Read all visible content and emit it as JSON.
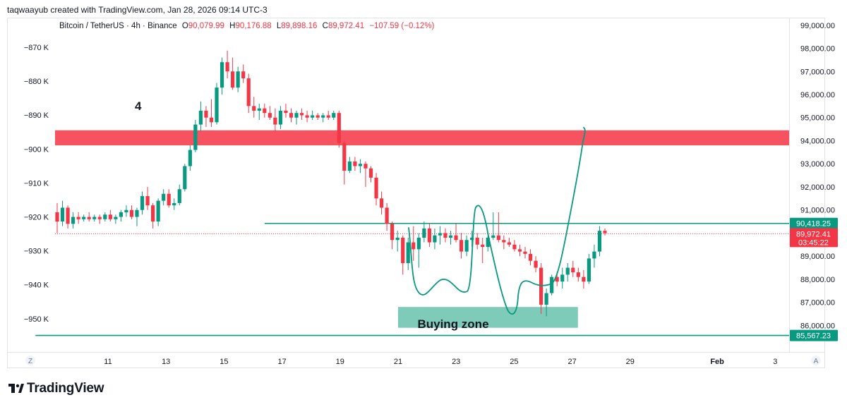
{
  "header": {
    "credit": "taqwaayub created with TradingView.com, Jan 28, 2026 09:14 UTC-3"
  },
  "symbol": {
    "name": "Bitcoin / TetherUS · 4h · Binance",
    "o_label": "O",
    "o_value": "90,079.99",
    "h_label": "H",
    "h_value": "90,176.88",
    "l_label": "L",
    "l_value": "89,898.16",
    "c_label": "C",
    "c_value": "89,972.41",
    "change": "−107.59 (−0.12%)"
  },
  "annotations": {
    "wave_number": "4",
    "buying_zone": "Buying zone"
  },
  "price_badges": {
    "upper_line": "90,418.25",
    "last_price": "89,972.41",
    "countdown": "03:45:22",
    "lower_line": "85,567.23"
  },
  "corner_buttons": {
    "left": "Z",
    "right": "A"
  },
  "footer": {
    "brand": "TradingView"
  },
  "colors": {
    "up": "#089981",
    "down": "#f23645",
    "resistance_zone": "#f7525f",
    "buying_zone": "#7fcbb9",
    "line": "#089981",
    "text": "#131722"
  },
  "chart_data": {
    "type": "candlestick",
    "title": "",
    "y_right": {
      "ticks": [
        "99,000.00",
        "98,000.00",
        "97,000.00",
        "96,000.00",
        "95,000.00",
        "94,000.00",
        "93,000.00",
        "92,000.00",
        "91,000.00",
        "90,000.00",
        "89,000.00",
        "88,000.00",
        "87,000.00",
        "86,000.00"
      ],
      "tick_values": [
        99000,
        98000,
        97000,
        96000,
        95000,
        94000,
        93000,
        92000,
        91000,
        90000,
        89000,
        88000,
        87000,
        86000
      ],
      "range": [
        85000,
        99500
      ]
    },
    "y_left": {
      "ticks": [
        "−870 K",
        "−880 K",
        "−890 K",
        "−900 K",
        "−910 K",
        "−920 K",
        "−930 K",
        "−940 K",
        "−950 K"
      ],
      "tick_values": [
        -870,
        -880,
        -890,
        -900,
        -910,
        -920,
        -930,
        -940,
        -950
      ]
    },
    "x_axis": {
      "labels": [
        "11",
        "13",
        "15",
        "17",
        "19",
        "21",
        "23",
        "25",
        "27",
        "29",
        "Feb",
        "3"
      ],
      "day_positions": [
        11,
        13,
        15,
        17,
        19,
        21,
        23,
        25,
        27,
        29,
        32,
        34
      ]
    },
    "resistance_zone": [
      93800,
      94450
    ],
    "buying_zone": {
      "price": [
        85900,
        86800
      ],
      "days": [
        21,
        27.2
      ]
    },
    "horizontal_lines": [
      {
        "price": 90418.25,
        "from_day": 16.4
      },
      {
        "price": 85567.23,
        "from_day": 8.5
      }
    ],
    "last_price": 89972.41,
    "candles_ohlc": [
      [
        90900,
        91300,
        90000,
        90500
      ],
      [
        90500,
        91400,
        90300,
        91100
      ],
      [
        91100,
        91200,
        90200,
        90400
      ],
      [
        90400,
        90900,
        90200,
        90700
      ],
      [
        90700,
        90900,
        90400,
        90600
      ],
      [
        90600,
        90800,
        90500,
        90700
      ],
      [
        90700,
        90900,
        90500,
        90600
      ],
      [
        90600,
        90800,
        90500,
        90700
      ],
      [
        90700,
        90800,
        90400,
        90600
      ],
      [
        90600,
        90900,
        90500,
        90800
      ],
      [
        90800,
        91000,
        90500,
        90600
      ],
      [
        90600,
        90800,
        90400,
        90700
      ],
      [
        90700,
        91000,
        90500,
        90900
      ],
      [
        90900,
        91200,
        90700,
        91000
      ],
      [
        91000,
        91200,
        90600,
        90700
      ],
      [
        90700,
        91100,
        90300,
        91000
      ],
      [
        91000,
        91800,
        90800,
        91600
      ],
      [
        91600,
        92000,
        91000,
        91200
      ],
      [
        91200,
        91300,
        90200,
        90500
      ],
      [
        90500,
        91500,
        90300,
        91400
      ],
      [
        91400,
        91900,
        91200,
        91700
      ],
      [
        91700,
        91900,
        91100,
        91200
      ],
      [
        91200,
        91500,
        91000,
        91300
      ],
      [
        91300,
        92100,
        91200,
        91900
      ],
      [
        91900,
        93000,
        91800,
        92900
      ],
      [
        92900,
        93800,
        92700,
        93600
      ],
      [
        93600,
        94900,
        93500,
        94700
      ],
      [
        94700,
        95700,
        94400,
        95300
      ],
      [
        95300,
        95500,
        94600,
        95000
      ],
      [
        95000,
        95800,
        94600,
        94800
      ],
      [
        94800,
        96500,
        94700,
        96300
      ],
      [
        96300,
        97600,
        96000,
        97400
      ],
      [
        97400,
        97900,
        96700,
        97000
      ],
      [
        97000,
        97600,
        96200,
        96300
      ],
      [
        96300,
        97200,
        96100,
        97000
      ],
      [
        97000,
        97300,
        96500,
        96700
      ],
      [
        96700,
        96900,
        95200,
        95500
      ],
      [
        95500,
        95900,
        95000,
        95300
      ],
      [
        95300,
        95600,
        94900,
        95400
      ],
      [
        95400,
        95600,
        95000,
        95200
      ],
      [
        95200,
        95500,
        94900,
        95000
      ],
      [
        95000,
        95400,
        94400,
        94700
      ],
      [
        94700,
        95500,
        94500,
        95300
      ],
      [
        95300,
        95600,
        95000,
        95200
      ],
      [
        95200,
        95400,
        94800,
        95000
      ],
      [
        95000,
        95300,
        94700,
        95200
      ],
      [
        95200,
        95400,
        94900,
        95100
      ],
      [
        95100,
        95300,
        94800,
        95000
      ],
      [
        95000,
        95300,
        94900,
        95100
      ],
      [
        95100,
        95200,
        94900,
        95000
      ],
      [
        95000,
        95200,
        94800,
        95100
      ],
      [
        95100,
        95300,
        94900,
        95000
      ],
      [
        95000,
        95300,
        94900,
        95200
      ],
      [
        95200,
        95300,
        93700,
        93900
      ],
      [
        93900,
        94000,
        92100,
        92700
      ],
      [
        92700,
        93300,
        92600,
        93100
      ],
      [
        93100,
        93300,
        92700,
        92900
      ],
      [
        92900,
        93200,
        92600,
        93000
      ],
      [
        93000,
        93100,
        92000,
        92800
      ],
      [
        92800,
        92900,
        92200,
        92400
      ],
      [
        92400,
        92600,
        91200,
        91500
      ],
      [
        91500,
        91800,
        90800,
        91100
      ],
      [
        91100,
        91300,
        90100,
        90400
      ],
      [
        90400,
        90500,
        89300,
        89700
      ],
      [
        89700,
        90100,
        89200,
        89800
      ],
      [
        89800,
        89900,
        88200,
        88700
      ],
      [
        88700,
        89800,
        88400,
        89600
      ],
      [
        89600,
        90300,
        88800,
        89300
      ],
      [
        89300,
        90000,
        88500,
        89800
      ],
      [
        89800,
        90500,
        89600,
        90200
      ],
      [
        90200,
        90400,
        89400,
        89600
      ],
      [
        89600,
        90200,
        89300,
        89900
      ],
      [
        89900,
        90300,
        89500,
        90000
      ],
      [
        90000,
        90200,
        89600,
        89800
      ],
      [
        89800,
        90100,
        89500,
        89900
      ],
      [
        89900,
        90400,
        89600,
        89700
      ],
      [
        89700,
        90000,
        88900,
        89200
      ],
      [
        89200,
        89900,
        89000,
        89700
      ],
      [
        89700,
        90100,
        89400,
        89800
      ],
      [
        89800,
        90000,
        89300,
        89500
      ],
      [
        89500,
        89800,
        88700,
        89400
      ],
      [
        89400,
        89900,
        89200,
        89800
      ],
      [
        89800,
        90900,
        89700,
        89900
      ],
      [
        89900,
        90900,
        89600,
        89700
      ],
      [
        89700,
        89900,
        89300,
        89600
      ],
      [
        89600,
        89800,
        89400,
        89500
      ],
      [
        89500,
        89700,
        89200,
        89300
      ],
      [
        89300,
        89500,
        89000,
        89200
      ],
      [
        89200,
        89400,
        88900,
        89100
      ],
      [
        89100,
        89300,
        88600,
        88800
      ],
      [
        88800,
        89000,
        88300,
        88500
      ],
      [
        88500,
        88700,
        86500,
        86900
      ],
      [
        86900,
        87600,
        86400,
        87400
      ],
      [
        87400,
        88200,
        87300,
        88100
      ],
      [
        88100,
        88300,
        87700,
        87900
      ],
      [
        87900,
        88500,
        87600,
        88200
      ],
      [
        88200,
        88700,
        87900,
        88500
      ],
      [
        88500,
        88800,
        88100,
        88300
      ],
      [
        88300,
        88500,
        87900,
        88100
      ],
      [
        88100,
        88400,
        87600,
        87900
      ],
      [
        87900,
        89100,
        87800,
        88900
      ],
      [
        88900,
        89500,
        88500,
        89200
      ],
      [
        89200,
        90300,
        89000,
        90100
      ],
      [
        90100,
        90200,
        89900,
        90000
      ]
    ]
  }
}
